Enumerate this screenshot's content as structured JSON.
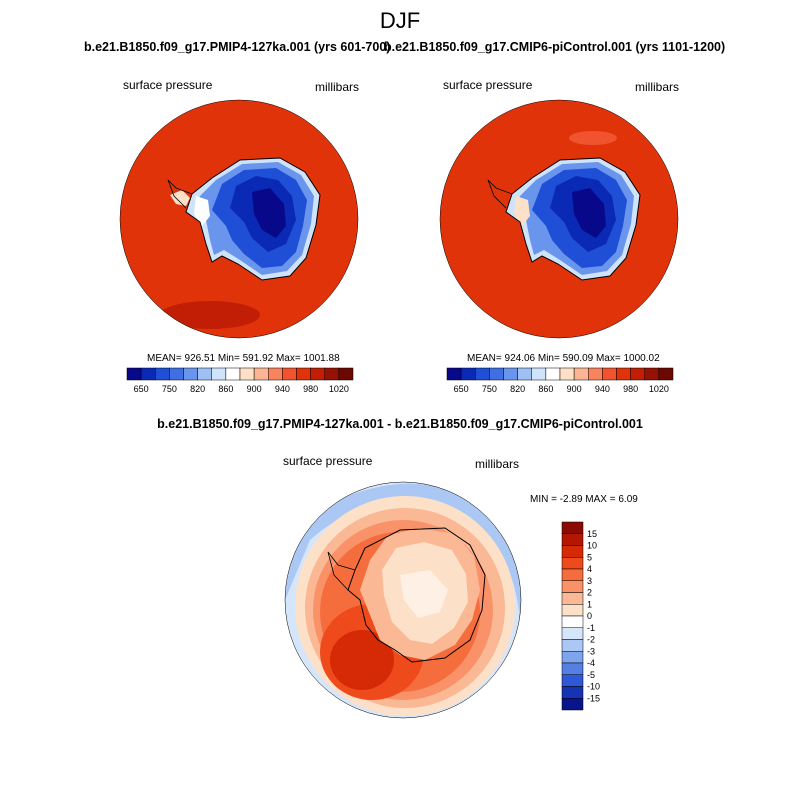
{
  "figure": {
    "title": "DJF"
  },
  "panels": [
    {
      "title": "b.e21.B1850.f09_g17.PMIP4-127ka.001 (yrs 601-700)",
      "left_label": "surface pressure",
      "right_label": "millibars",
      "stats": "MEAN= 926.51  Min= 591.92  Max= 1001.88"
    },
    {
      "title": "b.e21.B1850.f09_g17.CMIP6-piControl.001 (yrs 1101-1200)",
      "left_label": "surface pressure",
      "right_label": "millibars",
      "stats": "MEAN= 924.06  Min= 590.09  Max= 1000.02"
    }
  ],
  "colorbar_top": {
    "tick_labels": [
      "650",
      "750",
      "820",
      "860",
      "900",
      "940",
      "980",
      "1020"
    ],
    "colors": [
      "#08088a",
      "#0a2ab5",
      "#1e4fd6",
      "#3f6fe0",
      "#6a95ec",
      "#9ec0f4",
      "#cfe3fa",
      "#ffffff",
      "#fde0c8",
      "#fbb595",
      "#f7845f",
      "#f0532e",
      "#e0330a",
      "#c11e05",
      "#971004",
      "#6b0802"
    ]
  },
  "difference": {
    "title": "b.e21.B1850.f09_g17.PMIP4-127ka.001 - b.e21.B1850.f09_g17.CMIP6-piControl.001",
    "left_label": "surface pressure",
    "right_label": "millibars",
    "stats": "MIN =  -2.89 MAX =   6.09"
  },
  "colorbar_diff": {
    "tick_labels": [
      "15",
      "10",
      "5",
      "4",
      "3",
      "2",
      "1",
      "0",
      "-1",
      "-2",
      "-3",
      "-4",
      "-5",
      "-10",
      "-15"
    ],
    "colors": [
      "#8b0a02",
      "#b51604",
      "#d62a06",
      "#ee4a1c",
      "#f56d3d",
      "#f99268",
      "#fbb895",
      "#fde0c8",
      "#ffffff",
      "#d6e6fa",
      "#abc8f4",
      "#7da4ec",
      "#5480e3",
      "#2f59d6",
      "#1533b2",
      "#08148a"
    ]
  }
}
